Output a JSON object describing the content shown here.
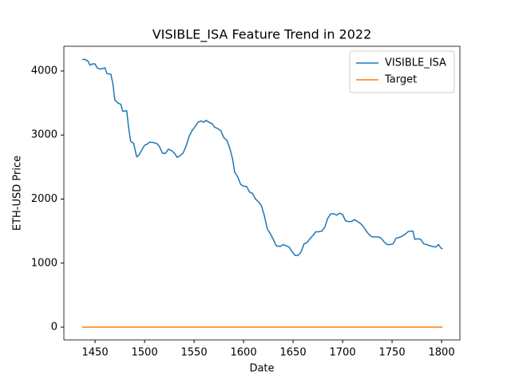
{
  "chart_data": {
    "type": "line",
    "title": "VISIBLE_ISA Feature Trend in 2022",
    "x_label": "Date",
    "y_label": "ETH-USD Price",
    "x": [
      1437,
      1440,
      1443,
      1445,
      1447,
      1450,
      1452,
      1455,
      1458,
      1460,
      1462,
      1466,
      1468,
      1470,
      1473,
      1476,
      1478,
      1482,
      1484,
      1486,
      1489,
      1492,
      1494,
      1497,
      1500,
      1503,
      1505,
      1510,
      1513,
      1515,
      1518,
      1521,
      1524,
      1527,
      1530,
      1533,
      1536,
      1539,
      1542,
      1545,
      1548,
      1551,
      1554,
      1557,
      1560,
      1562,
      1565,
      1568,
      1571,
      1574,
      1577,
      1580,
      1583,
      1586,
      1589,
      1591,
      1594,
      1597,
      1600,
      1603,
      1606,
      1609,
      1612,
      1615,
      1618,
      1621,
      1624,
      1627,
      1630,
      1633,
      1637,
      1640,
      1643,
      1646,
      1649,
      1652,
      1655,
      1658,
      1661,
      1664,
      1667,
      1670,
      1673,
      1676,
      1679,
      1682,
      1685,
      1688,
      1691,
      1694,
      1697,
      1700,
      1703,
      1706,
      1709,
      1712,
      1715,
      1718,
      1721,
      1724,
      1727,
      1730,
      1733,
      1736,
      1739,
      1742,
      1745,
      1748,
      1751,
      1754,
      1757,
      1760,
      1763,
      1766,
      1769,
      1771,
      1773,
      1776,
      1779,
      1782,
      1785,
      1788,
      1791,
      1794,
      1797,
      1799,
      1801
    ],
    "series": [
      {
        "name": "VISIBLE_ISA",
        "color": "#1f77b4",
        "values": [
          4180,
          4180,
          4150,
          4090,
          4110,
          4110,
          4050,
          4030,
          4040,
          4050,
          3960,
          3950,
          3800,
          3550,
          3500,
          3480,
          3370,
          3380,
          3100,
          2900,
          2870,
          2660,
          2680,
          2760,
          2840,
          2860,
          2890,
          2880,
          2860,
          2820,
          2720,
          2710,
          2780,
          2760,
          2720,
          2650,
          2680,
          2720,
          2830,
          2980,
          3070,
          3130,
          3200,
          3220,
          3200,
          3230,
          3200,
          3180,
          3120,
          3100,
          3070,
          2960,
          2920,
          2800,
          2620,
          2420,
          2350,
          2230,
          2200,
          2200,
          2110,
          2090,
          2000,
          1960,
          1900,
          1740,
          1530,
          1460,
          1370,
          1270,
          1260,
          1290,
          1270,
          1250,
          1180,
          1120,
          1120,
          1170,
          1300,
          1320,
          1380,
          1430,
          1490,
          1490,
          1500,
          1560,
          1700,
          1770,
          1770,
          1750,
          1780,
          1760,
          1660,
          1650,
          1650,
          1680,
          1650,
          1620,
          1570,
          1500,
          1440,
          1410,
          1410,
          1410,
          1390,
          1330,
          1290,
          1290,
          1300,
          1390,
          1400,
          1420,
          1450,
          1490,
          1500,
          1500,
          1370,
          1380,
          1370,
          1300,
          1290,
          1270,
          1260,
          1250,
          1290,
          1240,
          1220
        ]
      },
      {
        "name": "Target",
        "color": "#ff7f0e",
        "x": [
          1437,
          1801
        ],
        "values": [
          0,
          0
        ]
      }
    ],
    "xlim": [
      1418.5,
      1818.5
    ],
    "ylim": [
      -199,
      4386
    ],
    "xticks": [
      1450,
      1500,
      1550,
      1600,
      1650,
      1700,
      1750,
      1800
    ],
    "yticks": [
      0,
      1000,
      2000,
      3000,
      4000
    ],
    "legend": "upper right"
  }
}
